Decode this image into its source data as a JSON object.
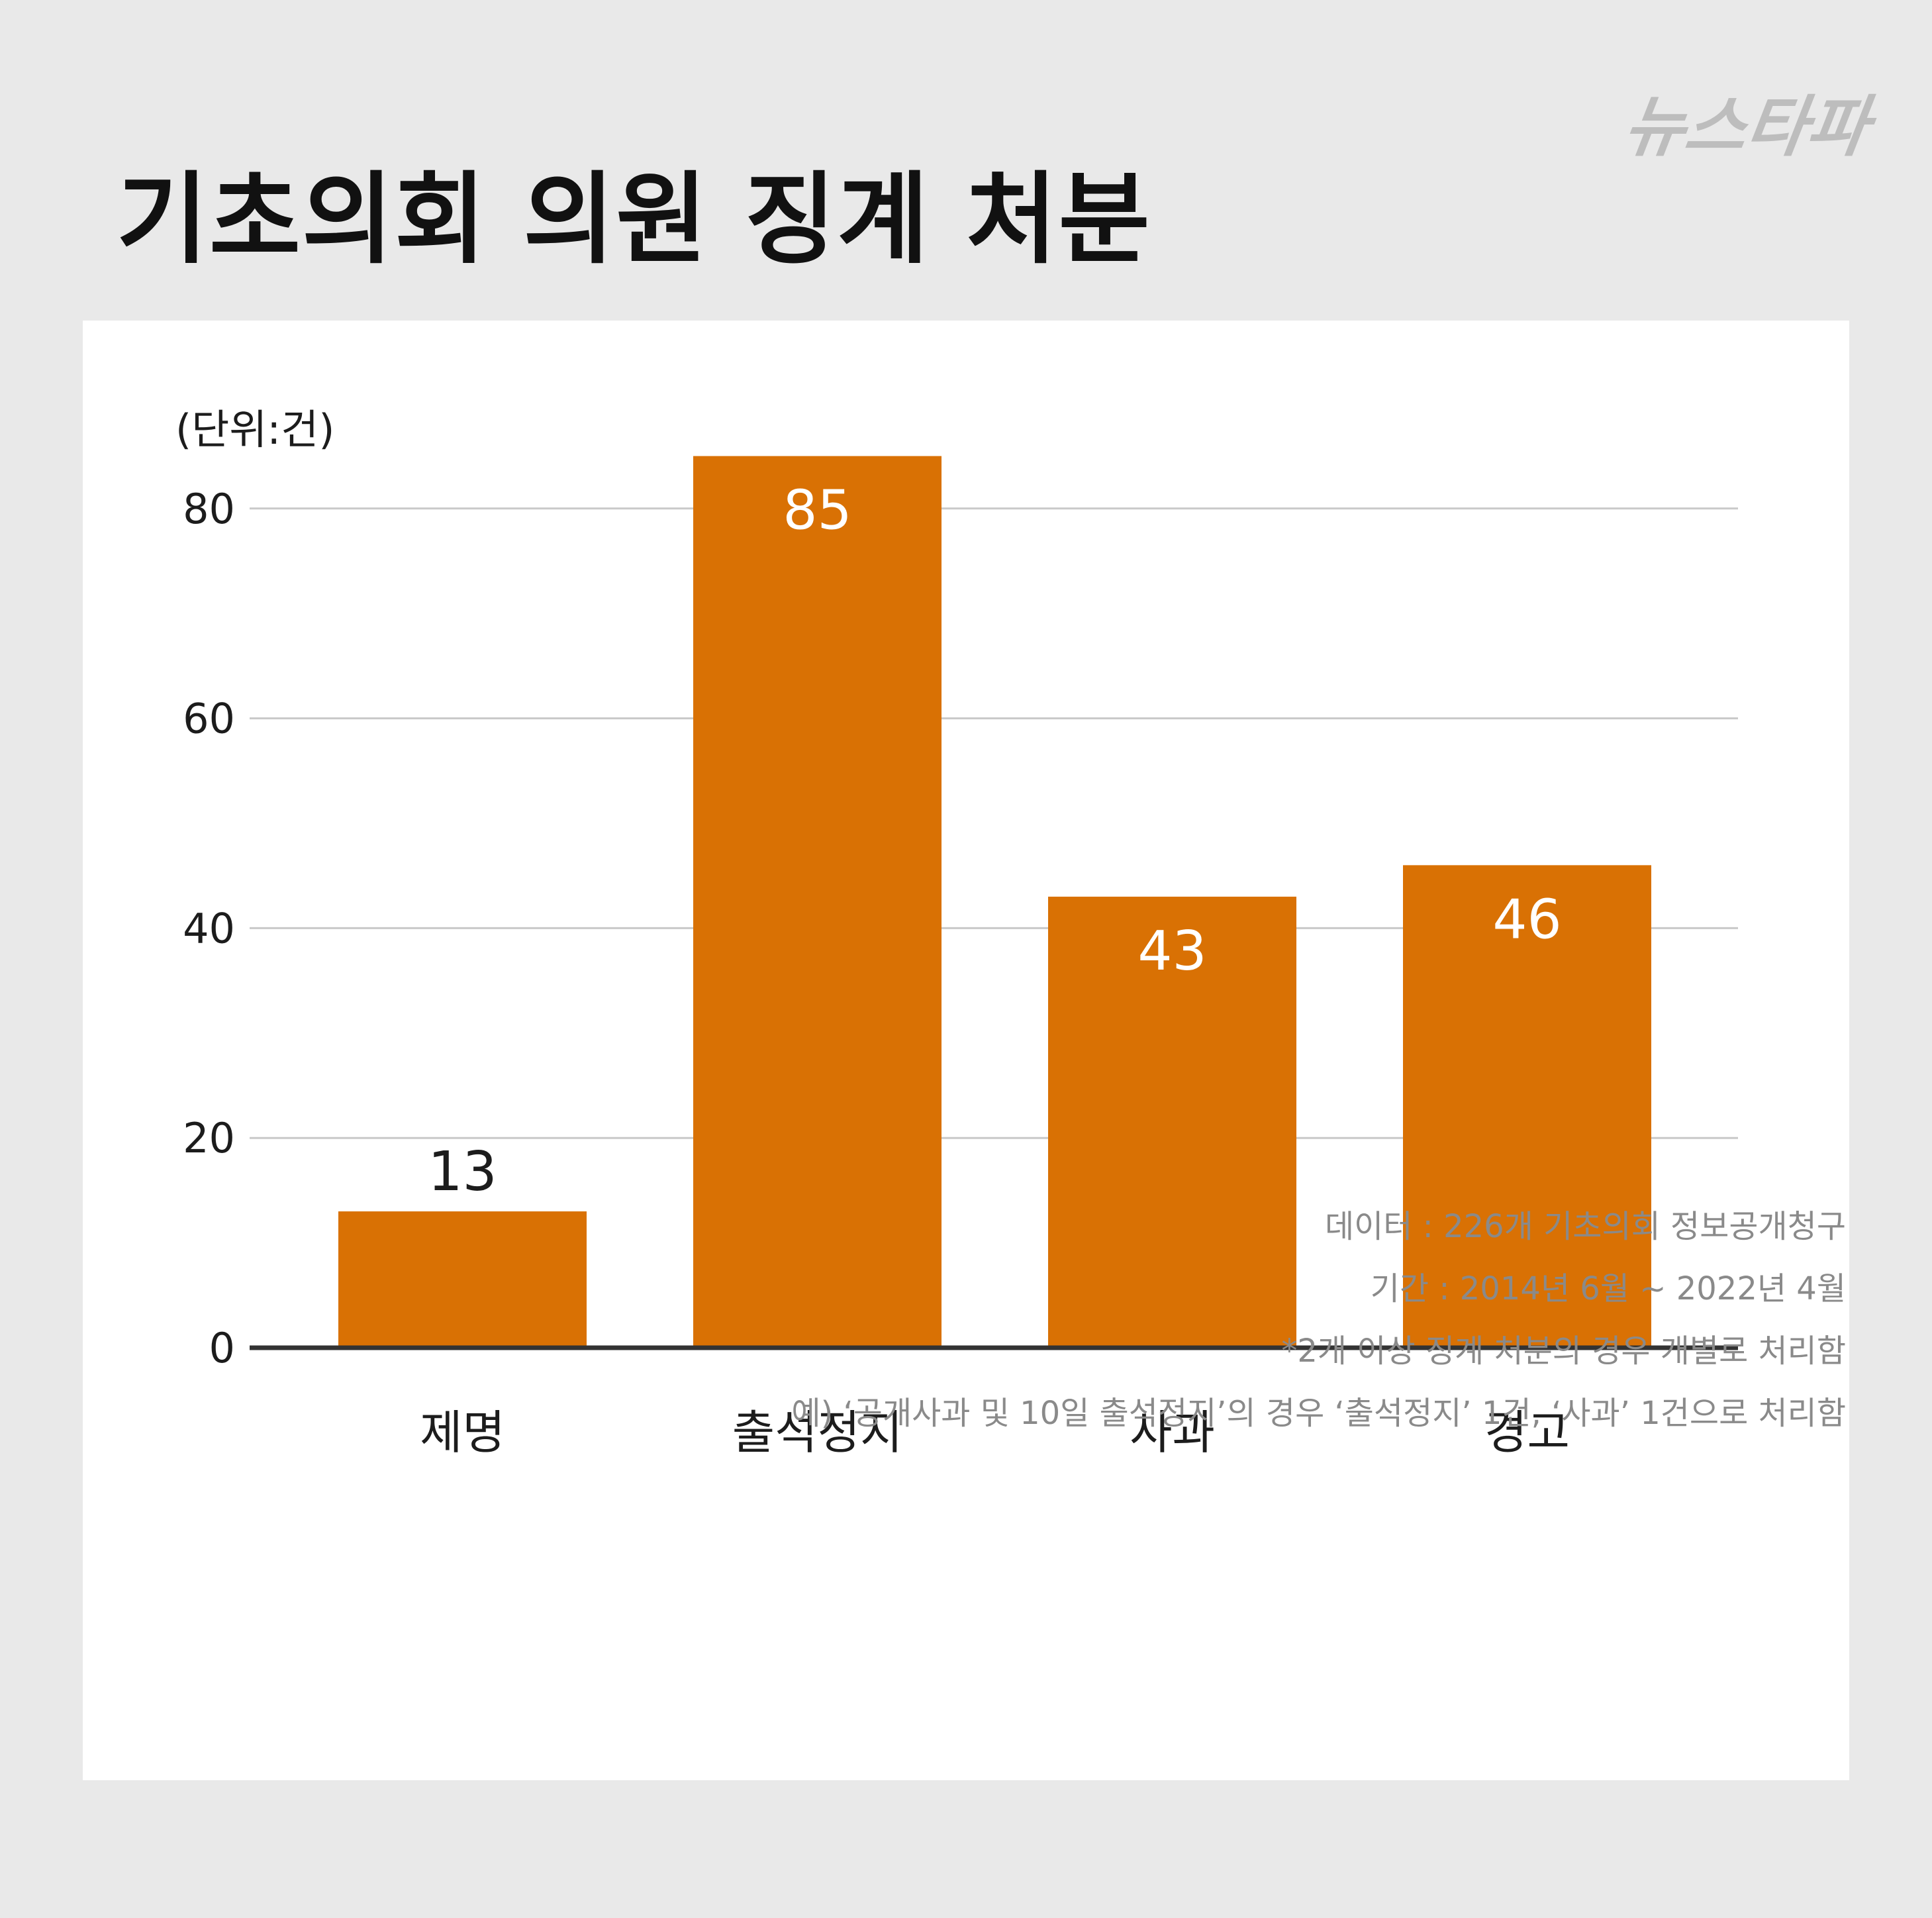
{
  "title": "기초의회 의원 징계 처분",
  "logo_text": "뉴스타파",
  "chart_data": {
    "type": "bar",
    "title": "기초의회 의원 징계 처분",
    "unit_label": "(단위:건)",
    "categories": [
      "제명",
      "출석정지",
      "사과",
      "경고"
    ],
    "values": [
      13,
      85,
      43,
      46
    ],
    "ylim": [
      0,
      85
    ],
    "yticks": [
      0,
      20,
      40,
      60,
      80
    ],
    "grid": true,
    "bar_color": "#d97104",
    "label_inside_color": "#ffffff",
    "label_outside_color": "#1c1c1c"
  },
  "notes": [
    "데이터 : 226개 기초의회 정보공개청구",
    "기간 : 2014년 6월 ~ 2022년 4월",
    "*2개 이상 징계 처분의 경우 개별로 처리함",
    "예) ‘공개사과 및 10일 출석정지’의 경우 ‘출석정지’ 1건, ‘사과’ 1건으로 처리함"
  ]
}
